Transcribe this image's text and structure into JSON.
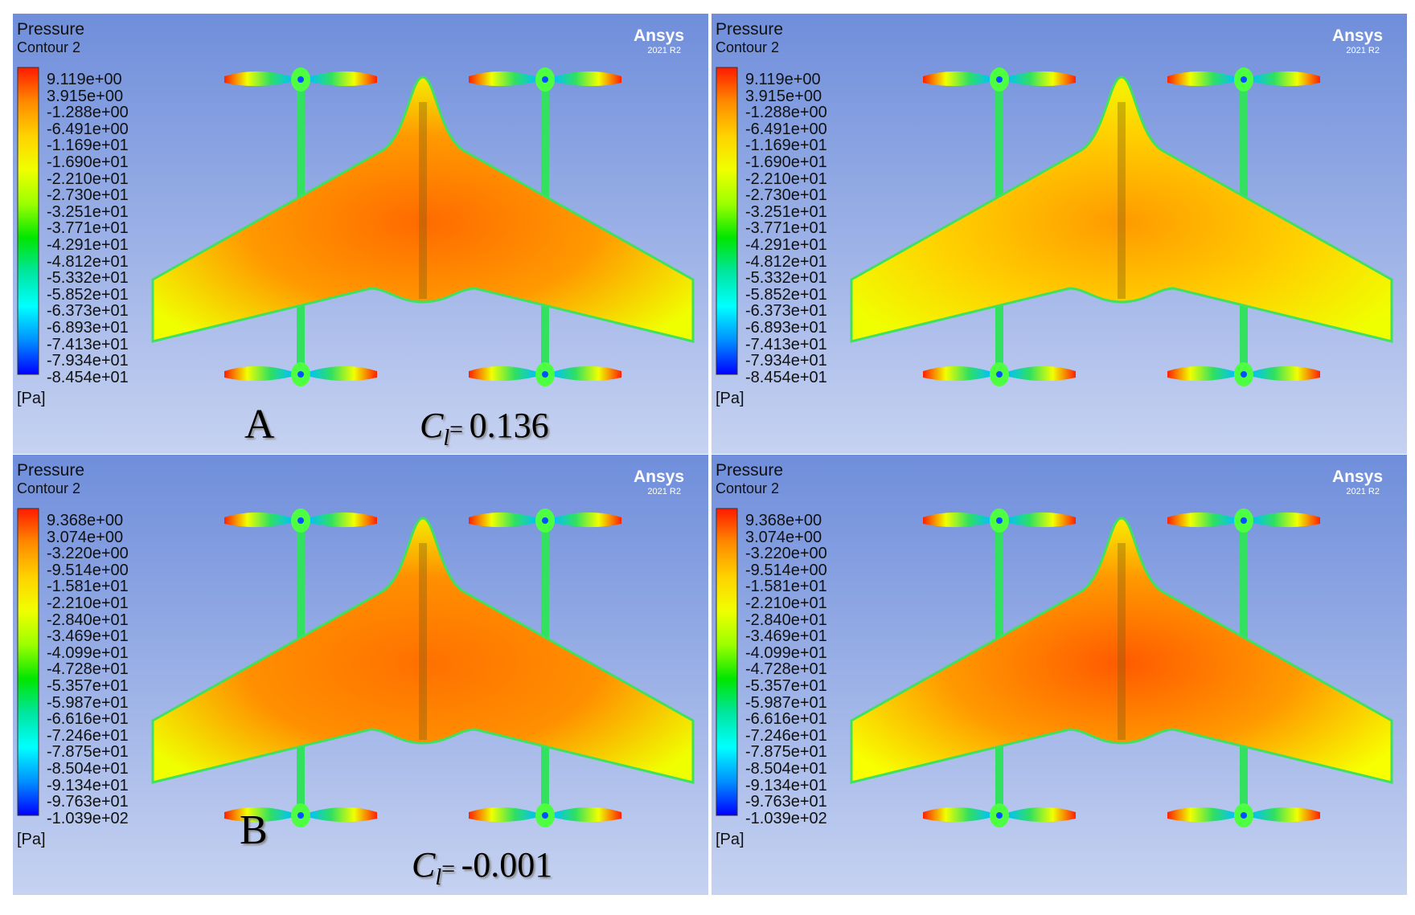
{
  "colors": {
    "bg_top": "#6f8edb",
    "bg_bottom": "#c6d2f1",
    "scale": [
      "#ff1a00",
      "#ff8a00",
      "#ffd200",
      "#f0ff00",
      "#9cff00",
      "#00e600",
      "#00e6a0",
      "#00ffff",
      "#0090ff",
      "#0000ff"
    ]
  },
  "panels": [
    {
      "title": "Pressure",
      "subtitle": "Contour 2",
      "brand": "Ansys",
      "version": "2021 R2",
      "unit": "[Pa]",
      "legend": [
        "9.119e+00",
        "3.915e+00",
        "-1.288e+00",
        "-6.491e+00",
        "-1.169e+01",
        "-1.690e+01",
        "-2.210e+01",
        "-2.730e+01",
        "-3.251e+01",
        "-3.771e+01",
        "-4.291e+01",
        "-4.812e+01",
        "-5.332e+01",
        "-5.852e+01",
        "-6.373e+01",
        "-6.893e+01",
        "-7.413e+01",
        "-7.934e+01",
        "-8.454e+01"
      ],
      "case_label": "A",
      "cl_symbol": "C",
      "cl_sub": "l",
      "cl_eq": "= ",
      "cl_value": "0.136",
      "style": "a"
    },
    {
      "title": "Pressure",
      "subtitle": "Contour 2",
      "brand": "Ansys",
      "version": "2021 R2",
      "unit": "[Pa]",
      "legend": [
        "9.119e+00",
        "3.915e+00",
        "-1.288e+00",
        "-6.491e+00",
        "-1.169e+01",
        "-1.690e+01",
        "-2.210e+01",
        "-2.730e+01",
        "-3.251e+01",
        "-3.771e+01",
        "-4.291e+01",
        "-4.812e+01",
        "-5.332e+01",
        "-5.852e+01",
        "-6.373e+01",
        "-6.893e+01",
        "-7.413e+01",
        "-7.934e+01",
        "-8.454e+01"
      ],
      "style": "c"
    },
    {
      "title": "Pressure",
      "subtitle": "Contour 2",
      "brand": "Ansys",
      "version": "2021 R2",
      "unit": "[Pa]",
      "legend": [
        "9.368e+00",
        "3.074e+00",
        "-3.220e+00",
        "-9.514e+00",
        "-1.581e+01",
        "-2.210e+01",
        "-2.840e+01",
        "-3.469e+01",
        "-4.099e+01",
        "-4.728e+01",
        "-5.357e+01",
        "-5.987e+01",
        "-6.616e+01",
        "-7.246e+01",
        "-7.875e+01",
        "-8.504e+01",
        "-9.134e+01",
        "-9.763e+01",
        "-1.039e+02"
      ],
      "case_label": "B",
      "cl_symbol": "C",
      "cl_sub": "l",
      "cl_eq": "= ",
      "cl_value": "-0.001",
      "style": "b"
    },
    {
      "title": "Pressure",
      "subtitle": "Contour 2",
      "brand": "Ansys",
      "version": "2021 R2",
      "unit": "[Pa]",
      "legend": [
        "9.368e+00",
        "3.074e+00",
        "-3.220e+00",
        "-9.514e+00",
        "-1.581e+01",
        "-2.210e+01",
        "-2.840e+01",
        "-3.469e+01",
        "-4.099e+01",
        "-4.728e+01",
        "-5.357e+01",
        "-5.987e+01",
        "-6.616e+01",
        "-7.246e+01",
        "-7.875e+01",
        "-8.504e+01",
        "-9.134e+01",
        "-9.763e+01",
        "-1.039e+02"
      ],
      "style": "d"
    }
  ]
}
